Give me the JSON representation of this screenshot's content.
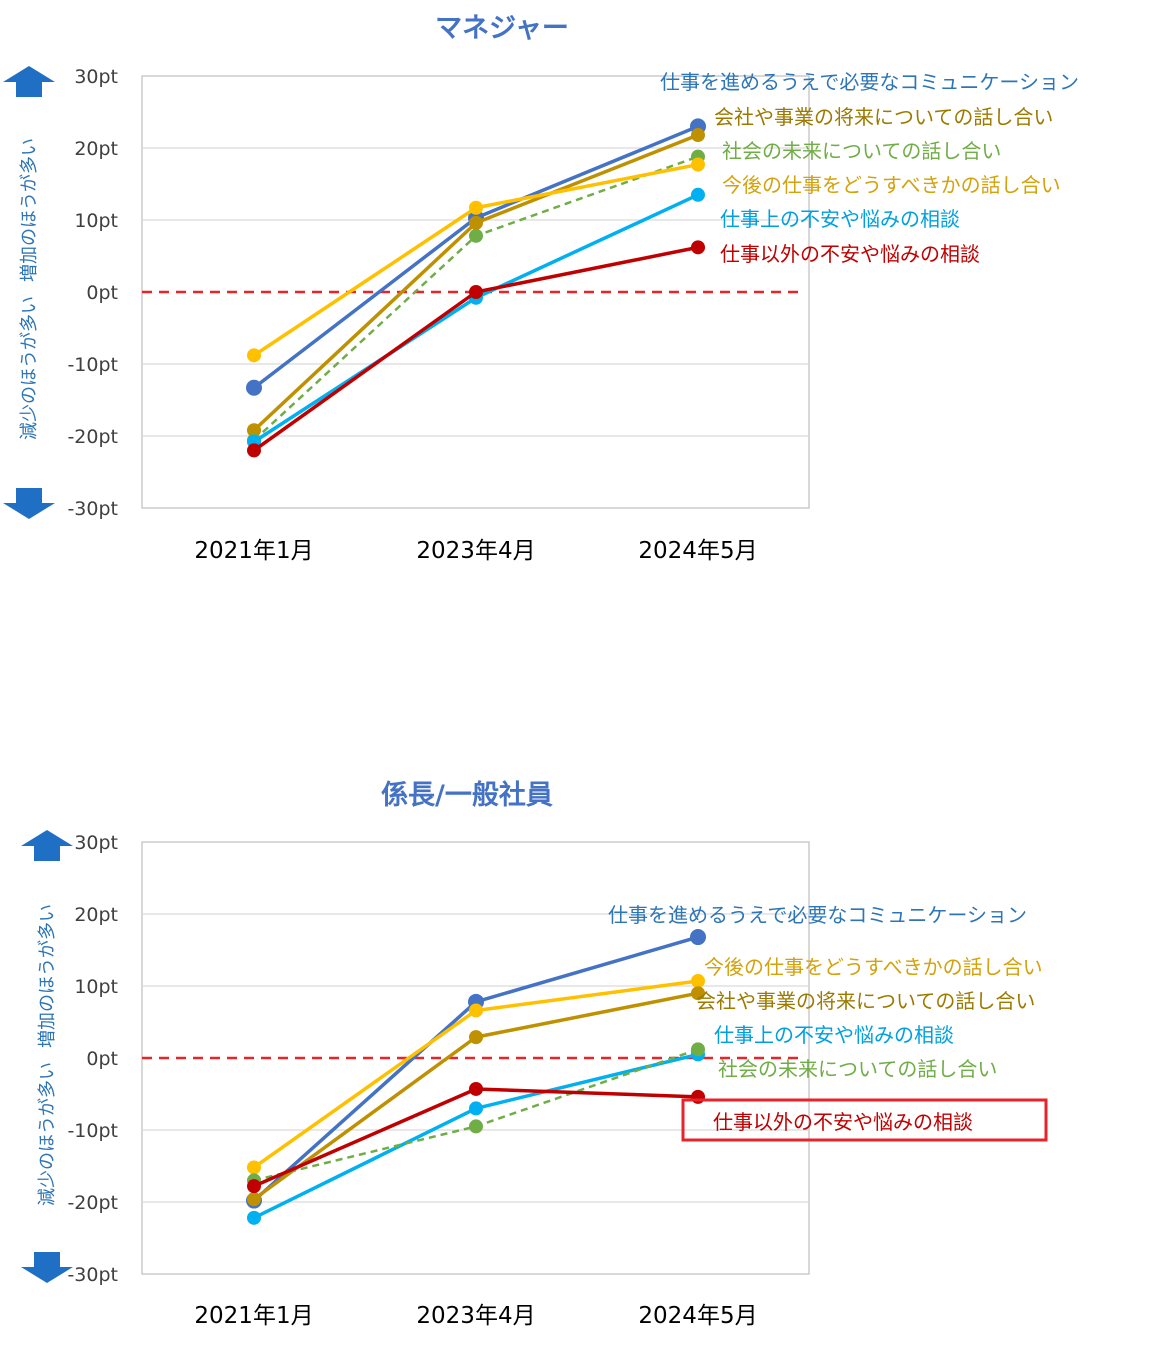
{
  "chart_data": [
    {
      "type": "line",
      "title": "マネジャー",
      "categories": [
        "2021年1月",
        "2023年4月",
        "2024年5月"
      ],
      "ylim": [
        -30,
        30
      ],
      "yticks": [
        "30pt",
        "20pt",
        "10pt",
        "0pt",
        "-10pt",
        "-20pt",
        "-30pt"
      ],
      "ylabel_up": "増加のほうが多い",
      "ylabel_down": "減少のほうが多い",
      "reference_line": 0,
      "grid": true,
      "series": [
        {
          "name": "仕事を進めるうえで必要なコミュニケーション",
          "values": [
            -13.3,
            10.3,
            23.0
          ],
          "color": "#4472c4",
          "dash": false
        },
        {
          "name": "会社や事業の将来についての話し合い",
          "values": [
            -19.2,
            9.6,
            21.8
          ],
          "color": "#bf9000",
          "dash": false
        },
        {
          "name": "社会の未来についての話し合い",
          "values": [
            -20.6,
            7.8,
            18.8
          ],
          "color": "#70ad47",
          "dash": true
        },
        {
          "name": "今後の仕事をどうすべきかの話し合い",
          "values": [
            -8.8,
            11.7,
            17.7
          ],
          "color": "#ffc000",
          "dash": false
        },
        {
          "name": "仕事上の不安や悩みの相談",
          "values": [
            -20.8,
            -0.8,
            13.5
          ],
          "color": "#00b0f0",
          "dash": false
        },
        {
          "name": "仕事以外の不安や悩みの相談",
          "values": [
            -22.0,
            0.0,
            6.2
          ],
          "color": "#c00000",
          "dash": false
        }
      ]
    },
    {
      "type": "line",
      "title": "係長/一般社員",
      "categories": [
        "2021年1月",
        "2023年4月",
        "2024年5月"
      ],
      "ylim": [
        -30,
        30
      ],
      "yticks": [
        "30pt",
        "20pt",
        "10pt",
        "0pt",
        "-10pt",
        "-20pt",
        "-30pt"
      ],
      "ylabel_up": "増加のほうが多い",
      "ylabel_down": "減少のほうが多い",
      "reference_line": 0,
      "grid": true,
      "series": [
        {
          "name": "仕事を進めるうえで必要なコミュニケーション",
          "values": [
            -19.8,
            7.8,
            16.8
          ],
          "color": "#4472c4",
          "dash": false
        },
        {
          "name": "今後の仕事をどうすべきかの話し合い",
          "values": [
            -15.2,
            6.6,
            10.7
          ],
          "color": "#ffc000",
          "dash": false
        },
        {
          "name": "会社や事業の将来についての話し合い",
          "values": [
            -19.6,
            2.9,
            9.0
          ],
          "color": "#bf9000",
          "dash": false
        },
        {
          "name": "仕事上の不安や悩みの相談",
          "values": [
            -22.2,
            -7.0,
            0.5
          ],
          "color": "#00b0f0",
          "dash": false
        },
        {
          "name": "社会の未来についての話し合い",
          "values": [
            -17.0,
            -9.5,
            1.2
          ],
          "color": "#70ad47",
          "dash": true
        },
        {
          "name": "仕事以外の不安や悩みの相談",
          "values": [
            -17.8,
            -4.3,
            -5.4
          ],
          "color": "#c00000",
          "dash": false,
          "highlight": true
        }
      ]
    }
  ]
}
